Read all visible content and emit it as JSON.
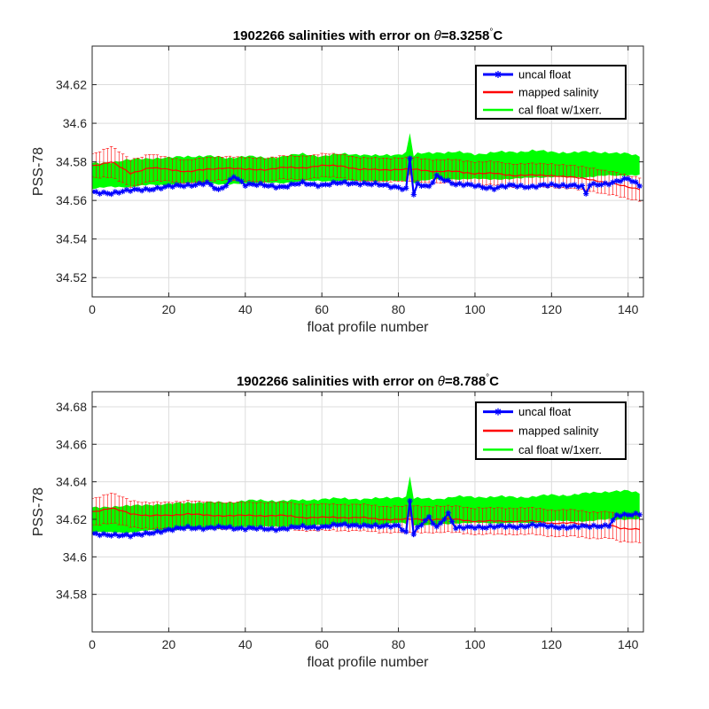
{
  "chart_data": [
    {
      "type": "line",
      "title_prefix": "1902266 salinities with error on ",
      "theta_symbol": "θ",
      "theta_value": "=8.3258",
      "degree": "°",
      "unit": "C",
      "xlabel": "float profile number",
      "ylabel": "PSS-78",
      "xlim": [
        0,
        144
      ],
      "ylim": [
        34.51,
        34.64
      ],
      "xticks": [
        0,
        20,
        40,
        60,
        80,
        100,
        120,
        140
      ],
      "xtick_labels": [
        "0",
        "20",
        "40",
        "60",
        "80",
        "100",
        "120",
        "140"
      ],
      "yticks": [
        34.52,
        34.54,
        34.56,
        34.58,
        34.6,
        34.62
      ],
      "ytick_labels": [
        "34.52",
        "34.54",
        "34.56",
        "34.58",
        "34.6",
        "34.62"
      ],
      "grid": true,
      "legend_position": "top-right",
      "series": [
        {
          "name": "uncal float",
          "color": "#0000ff",
          "marker": "asterisk",
          "x": [
            0,
            5,
            10,
            15,
            20,
            25,
            30,
            33,
            35,
            37,
            40,
            45,
            50,
            55,
            60,
            65,
            70,
            75,
            80,
            82,
            83,
            84,
            85,
            88,
            90,
            95,
            100,
            105,
            110,
            115,
            120,
            125,
            128,
            129,
            130,
            135,
            140,
            143
          ],
          "y": [
            34.564,
            34.564,
            34.565,
            34.566,
            34.567,
            34.568,
            34.569,
            34.565,
            34.568,
            34.573,
            34.568,
            34.568,
            34.567,
            34.569,
            34.568,
            34.569,
            34.569,
            34.568,
            34.567,
            34.566,
            34.582,
            34.563,
            34.568,
            34.567,
            34.573,
            34.568,
            34.568,
            34.566,
            34.568,
            34.567,
            34.568,
            34.568,
            34.567,
            34.563,
            34.568,
            34.569,
            34.571,
            34.568
          ]
        },
        {
          "name": "mapped salinity",
          "color": "#ff0000",
          "x": [
            0,
            5,
            10,
            15,
            20,
            25,
            30,
            35,
            40,
            45,
            50,
            55,
            60,
            65,
            70,
            75,
            80,
            85,
            90,
            95,
            100,
            105,
            110,
            115,
            120,
            125,
            130,
            135,
            140,
            143
          ],
          "y": [
            34.578,
            34.58,
            34.574,
            34.577,
            34.576,
            34.575,
            34.576,
            34.577,
            34.576,
            34.576,
            34.577,
            34.577,
            34.578,
            34.578,
            34.576,
            34.576,
            34.576,
            34.576,
            34.575,
            34.575,
            34.574,
            34.574,
            34.573,
            34.573,
            34.573,
            34.572,
            34.571,
            34.569,
            34.567,
            34.566
          ],
          "err": [
            0.006,
            0.008,
            0.007,
            0.007,
            0.006,
            0.006,
            0.006,
            0.006,
            0.006,
            0.006,
            0.006,
            0.006,
            0.006,
            0.006,
            0.006,
            0.006,
            0.006,
            0.006,
            0.006,
            0.006,
            0.006,
            0.006,
            0.006,
            0.006,
            0.006,
            0.006,
            0.006,
            0.006,
            0.006,
            0.006
          ]
        },
        {
          "name": "cal float w/1xerr.",
          "color": "#00ff00",
          "x": [
            0,
            5,
            10,
            15,
            20,
            25,
            30,
            35,
            40,
            45,
            50,
            55,
            60,
            65,
            70,
            75,
            80,
            82,
            83,
            84,
            85,
            90,
            95,
            100,
            105,
            110,
            115,
            120,
            125,
            130,
            135,
            140,
            143
          ],
          "upper": [
            34.579,
            34.58,
            34.581,
            34.582,
            34.582,
            34.583,
            34.583,
            34.582,
            34.583,
            34.582,
            34.583,
            34.584,
            34.583,
            34.584,
            34.584,
            34.583,
            34.584,
            34.585,
            34.595,
            34.583,
            34.584,
            34.585,
            34.585,
            34.584,
            34.585,
            34.585,
            34.586,
            34.585,
            34.585,
            34.585,
            34.585,
            34.584,
            34.583
          ],
          "lower": [
            34.566,
            34.567,
            34.567,
            34.568,
            34.568,
            34.569,
            34.569,
            34.568,
            34.569,
            34.569,
            34.569,
            34.57,
            34.57,
            34.57,
            34.57,
            34.57,
            34.57,
            34.57,
            34.574,
            34.569,
            34.57,
            34.571,
            34.571,
            34.571,
            34.571,
            34.571,
            34.572,
            34.572,
            34.572,
            34.572,
            34.573,
            34.573,
            34.573
          ]
        }
      ]
    },
    {
      "type": "line",
      "title_prefix": "1902266 salinities with error on ",
      "theta_symbol": "θ",
      "theta_value": "=8.788",
      "degree": "°",
      "unit": "C",
      "xlabel": "float profile number",
      "ylabel": "PSS-78",
      "xlim": [
        0,
        144
      ],
      "ylim": [
        34.56,
        34.688
      ],
      "xticks": [
        0,
        20,
        40,
        60,
        80,
        100,
        120,
        140
      ],
      "xtick_labels": [
        "0",
        "20",
        "40",
        "60",
        "80",
        "100",
        "120",
        "140"
      ],
      "yticks": [
        34.58,
        34.6,
        34.62,
        34.64,
        34.66,
        34.68
      ],
      "ytick_labels": [
        "34.58",
        "34.6",
        "34.62",
        "34.64",
        "34.66",
        "34.68"
      ],
      "grid": true,
      "legend_position": "top-right",
      "series": [
        {
          "name": "uncal float",
          "color": "#0000ff",
          "marker": "asterisk",
          "x": [
            0,
            5,
            10,
            15,
            20,
            25,
            30,
            35,
            40,
            45,
            50,
            55,
            60,
            65,
            70,
            75,
            80,
            82,
            83,
            84,
            85,
            88,
            90,
            93,
            95,
            100,
            105,
            110,
            115,
            120,
            125,
            130,
            135,
            137,
            140,
            143
          ],
          "y": [
            34.612,
            34.612,
            34.611,
            34.613,
            34.614,
            34.616,
            34.615,
            34.616,
            34.615,
            34.615,
            34.615,
            34.616,
            34.616,
            34.617,
            34.617,
            34.616,
            34.617,
            34.613,
            34.63,
            34.612,
            34.615,
            34.621,
            34.616,
            34.623,
            34.615,
            34.616,
            34.616,
            34.616,
            34.617,
            34.616,
            34.616,
            34.616,
            34.617,
            34.622,
            34.622,
            34.623
          ]
        },
        {
          "name": "mapped salinity",
          "color": "#ff0000",
          "x": [
            0,
            5,
            10,
            15,
            20,
            25,
            30,
            35,
            40,
            45,
            50,
            55,
            60,
            65,
            70,
            75,
            80,
            85,
            90,
            95,
            100,
            105,
            110,
            115,
            120,
            125,
            130,
            135,
            138,
            140,
            143
          ],
          "y": [
            34.624,
            34.626,
            34.623,
            34.622,
            34.622,
            34.623,
            34.622,
            34.622,
            34.622,
            34.622,
            34.622,
            34.621,
            34.621,
            34.621,
            34.621,
            34.62,
            34.62,
            34.62,
            34.62,
            34.62,
            34.619,
            34.619,
            34.619,
            34.619,
            34.618,
            34.618,
            34.617,
            34.617,
            34.615,
            34.615,
            34.615
          ],
          "err": [
            0.007,
            0.008,
            0.007,
            0.007,
            0.007,
            0.007,
            0.007,
            0.007,
            0.007,
            0.007,
            0.007,
            0.007,
            0.007,
            0.007,
            0.007,
            0.007,
            0.007,
            0.007,
            0.007,
            0.007,
            0.007,
            0.007,
            0.007,
            0.007,
            0.007,
            0.007,
            0.007,
            0.007,
            0.007,
            0.007,
            0.007
          ]
        },
        {
          "name": "cal float w/1xerr.",
          "color": "#00ff00",
          "x": [
            0,
            5,
            10,
            15,
            20,
            25,
            30,
            35,
            40,
            45,
            50,
            55,
            60,
            65,
            70,
            75,
            80,
            82,
            83,
            84,
            85,
            90,
            95,
            100,
            105,
            110,
            115,
            120,
            125,
            130,
            135,
            140,
            143
          ],
          "upper": [
            34.626,
            34.627,
            34.627,
            34.628,
            34.628,
            34.629,
            34.629,
            34.629,
            34.63,
            34.63,
            34.63,
            34.63,
            34.631,
            34.631,
            34.631,
            34.631,
            34.632,
            34.632,
            34.643,
            34.631,
            34.631,
            34.631,
            34.632,
            34.632,
            34.632,
            34.632,
            34.632,
            34.633,
            34.633,
            34.634,
            34.635,
            34.635,
            34.634
          ],
          "lower": [
            34.613,
            34.613,
            34.613,
            34.614,
            34.614,
            34.615,
            34.615,
            34.615,
            34.616,
            34.616,
            34.616,
            34.616,
            34.617,
            34.617,
            34.617,
            34.617,
            34.618,
            34.618,
            34.622,
            34.617,
            34.617,
            34.617,
            34.618,
            34.618,
            34.618,
            34.618,
            34.618,
            34.619,
            34.619,
            34.619,
            34.62,
            34.62,
            34.62
          ]
        }
      ]
    }
  ]
}
